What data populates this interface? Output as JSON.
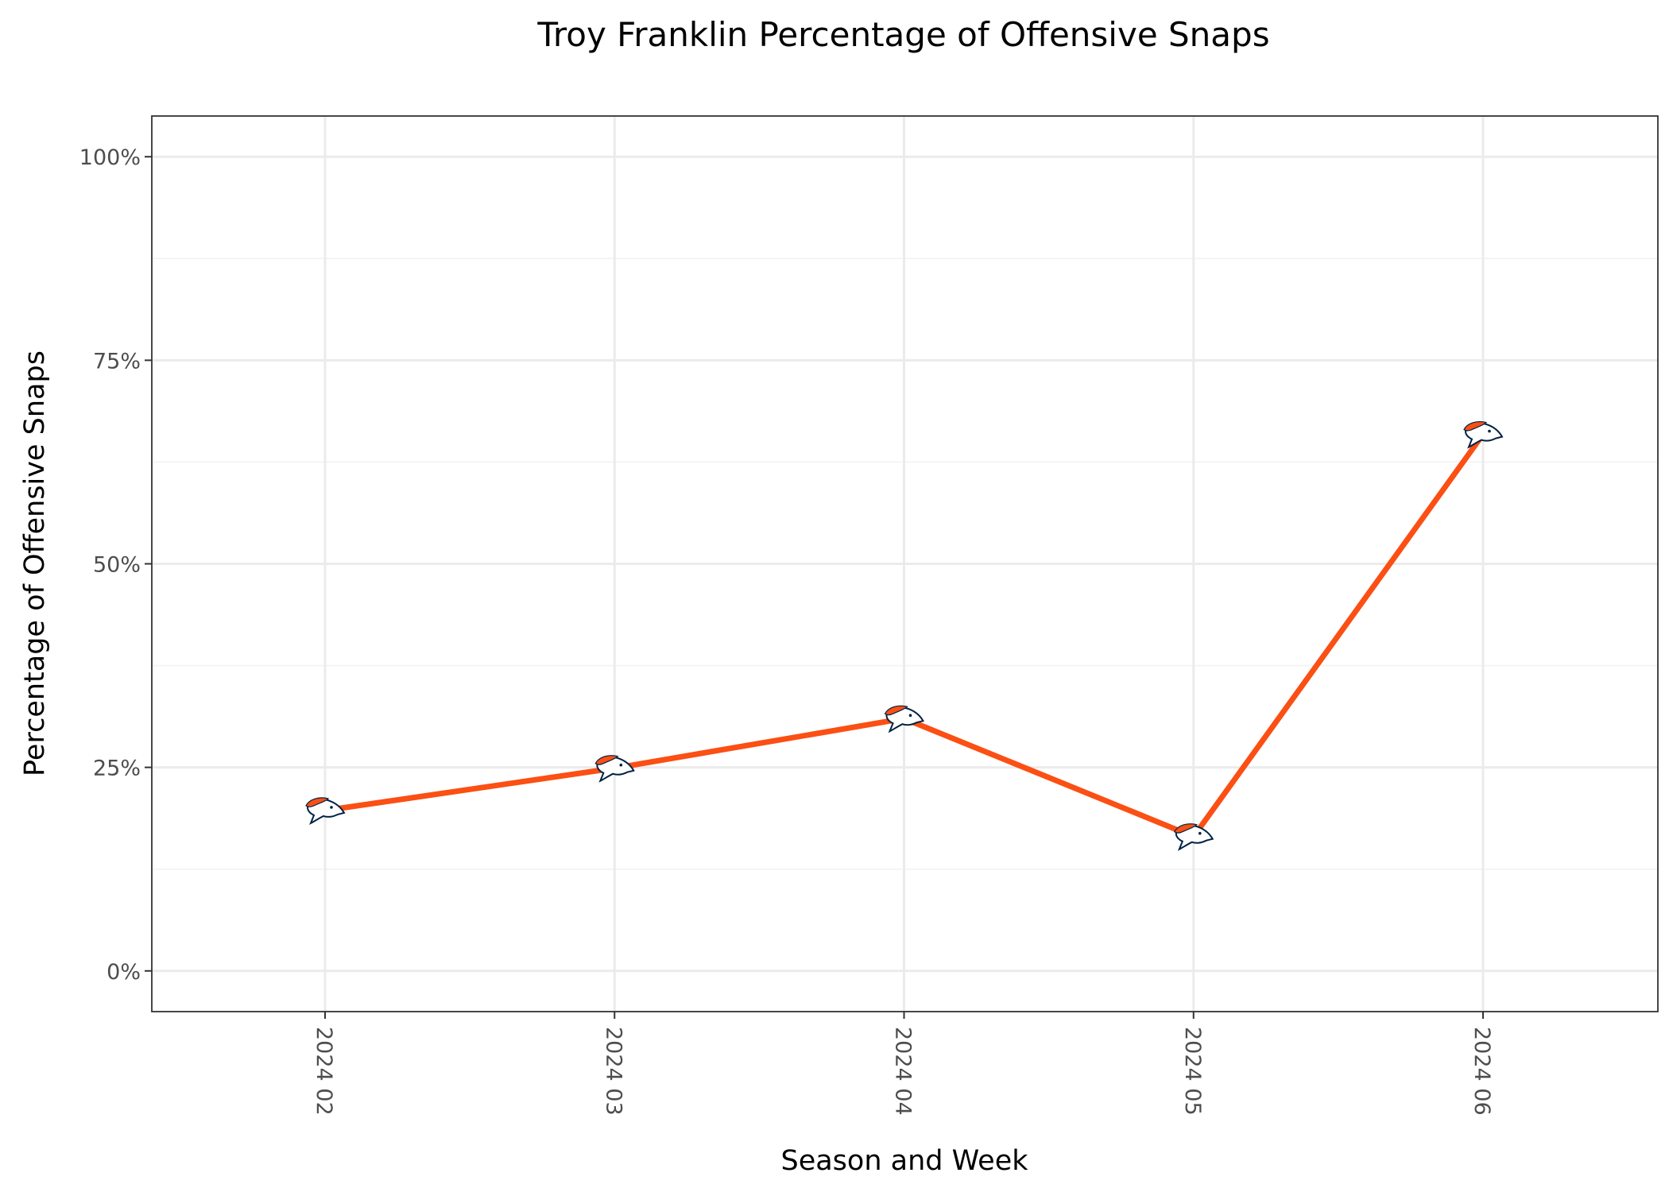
{
  "chart_data": {
    "type": "line",
    "title": "Troy Franklin Percentage of Offensive Snaps",
    "xlabel": "Season and Week",
    "ylabel": "Percentage of Offensive Snaps",
    "categories": [
      "2024 02",
      "2024 03",
      "2024 04",
      "2024 05",
      "2024 06"
    ],
    "series": [
      {
        "values": [
          19.7,
          24.9,
          31.0,
          16.5,
          65.9
        ]
      }
    ],
    "ylim": [
      -5,
      105
    ],
    "yticks": [
      0,
      25,
      50,
      75,
      100
    ],
    "ytick_labels": [
      "0%",
      "25%",
      "50%",
      "75%",
      "100%"
    ],
    "grid": true,
    "legend": "none",
    "colors": {
      "line": "#fb4f14",
      "logo_orange": "#fb4f14",
      "logo_navy": "#002244"
    },
    "marker_icon": "denver-broncos-logo-icon"
  }
}
